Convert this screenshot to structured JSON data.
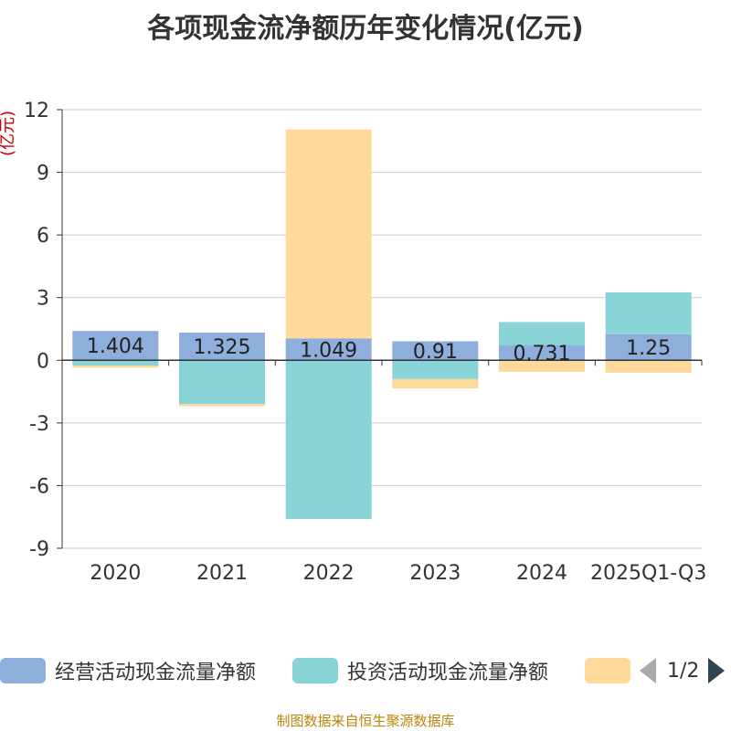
{
  "chart_data": {
    "type": "bar",
    "stacked": true,
    "title": "各项现金流净额历年变化情况(亿元)",
    "ylabel": "(亿元)",
    "xlabel": "",
    "ylim": [
      -9,
      12
    ],
    "yticks": [
      12,
      9,
      6,
      3,
      0,
      -3,
      -6,
      -9
    ],
    "categories": [
      "2020",
      "2021",
      "2022",
      "2023",
      "2024",
      "2025Q1-Q3"
    ],
    "series": [
      {
        "name": "经营活动现金流量净额",
        "color": "#8eaedc",
        "values": [
          1.404,
          1.325,
          1.049,
          0.91,
          0.731,
          1.25
        ],
        "labels": [
          "1.404",
          "1.325",
          "1.049",
          "0.91",
          "0.731",
          "1.25"
        ]
      },
      {
        "name": "投资活动现金流量净额",
        "color": "#88d4d7",
        "values": [
          -0.25,
          -2.1,
          -7.6,
          -0.9,
          1.1,
          2.0
        ]
      },
      {
        "name": "",
        "color": "#ffd999",
        "values": [
          -0.1,
          -0.1,
          10.0,
          -0.45,
          -0.55,
          -0.6
        ]
      }
    ],
    "grid": true,
    "legend_position": "bottom"
  },
  "legend": {
    "items": [
      {
        "label": "经营活动现金流量净额",
        "color": "#8eaedc"
      },
      {
        "label": "投资活动现金流量净额",
        "color": "#88d4d7"
      },
      {
        "label": "",
        "color": "#ffd999"
      }
    ],
    "pager": "1/2"
  },
  "source": "制图数据来自恒生聚源数据库"
}
